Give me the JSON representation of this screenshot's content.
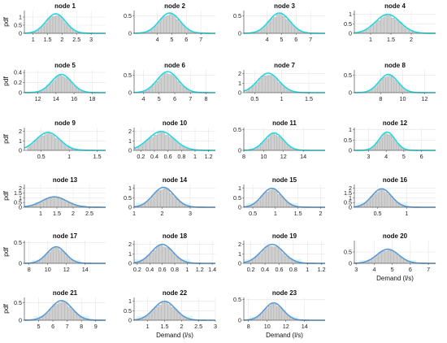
{
  "figure": {
    "ylabel": "pdf",
    "xlabel": "Demand (l/s)",
    "colors": {
      "light_curve": "#22d8e0",
      "dark_curve": "#5b9bd5",
      "hist_fill": "#cfcfcf",
      "hist_edge": "#9a9a9a",
      "band": "#d8f4f7",
      "grid": "#e6e6e6",
      "axis": "#333333"
    }
  },
  "chart_data": [
    {
      "type": "area",
      "title": "node 1",
      "xlim": [
        0.7,
        3.5
      ],
      "xticks": [
        1,
        1.5,
        2,
        2.5,
        3
      ],
      "ylim": [
        0,
        1.4
      ],
      "yticks": [
        0,
        0.5,
        1
      ],
      "peak": 1.2,
      "mu": 1.78,
      "sigma": 0.34,
      "series_style": "light",
      "ylabel": "pdf"
    },
    {
      "type": "area",
      "title": "node 2",
      "xlim": [
        2.4,
        8.0
      ],
      "xticks": [
        4,
        5,
        6,
        7
      ],
      "ylim": [
        0,
        0.65
      ],
      "yticks": [
        0,
        0.5
      ],
      "peak": 0.58,
      "mu": 4.85,
      "sigma": 0.72,
      "series_style": "light"
    },
    {
      "type": "area",
      "title": "node 3",
      "xlim": [
        2.4,
        8.0
      ],
      "xticks": [
        4,
        5,
        6,
        7
      ],
      "ylim": [
        0,
        0.65
      ],
      "yticks": [
        0,
        0.5
      ],
      "peak": 0.58,
      "mu": 4.85,
      "sigma": 0.72,
      "series_style": "light"
    },
    {
      "type": "area",
      "title": "node 4",
      "xlim": [
        0.6,
        2.6
      ],
      "xticks": [
        1,
        1.5,
        2
      ],
      "ylim": [
        0,
        1.2
      ],
      "yticks": [
        0,
        0.5,
        1
      ],
      "peak": 1.0,
      "mu": 1.42,
      "sigma": 0.3,
      "series_style": "light"
    },
    {
      "type": "area",
      "title": "node 5",
      "xlim": [
        10.5,
        19.5
      ],
      "xticks": [
        12,
        14,
        16,
        18
      ],
      "ylim": [
        0,
        0.45
      ],
      "yticks": [
        0,
        0.2,
        0.4
      ],
      "peak": 0.36,
      "mu": 14.6,
      "sigma": 1.1,
      "series_style": "light",
      "ylabel": "pdf"
    },
    {
      "type": "area",
      "title": "node 6",
      "xlim": [
        3.4,
        8.6
      ],
      "xticks": [
        4,
        5,
        6,
        7,
        8
      ],
      "ylim": [
        0,
        0.65
      ],
      "yticks": [
        0,
        0.5
      ],
      "peak": 0.6,
      "mu": 5.55,
      "sigma": 0.68,
      "series_style": "light"
    },
    {
      "type": "area",
      "title": "node 7",
      "xlim": [
        0.3,
        1.8
      ],
      "xticks": [
        0.5,
        1,
        1.5
      ],
      "ylim": [
        0,
        2.4
      ],
      "yticks": [
        0,
        1,
        2
      ],
      "peak": 2.05,
      "mu": 0.75,
      "sigma": 0.2,
      "series_style": "light"
    },
    {
      "type": "area",
      "title": "node 8",
      "xlim": [
        5.6,
        13.0
      ],
      "xticks": [
        8,
        10,
        12
      ],
      "ylim": [
        0,
        0.65
      ],
      "yticks": [
        0,
        0.5
      ],
      "peak": 0.52,
      "mu": 8.7,
      "sigma": 0.85,
      "series_style": "light"
    },
    {
      "type": "area",
      "title": "node 9",
      "xlim": [
        0.2,
        1.65
      ],
      "xticks": [
        0.5,
        1,
        1.5
      ],
      "ylim": [
        0,
        2.4
      ],
      "yticks": [
        0,
        1,
        2
      ],
      "peak": 1.9,
      "mu": 0.62,
      "sigma": 0.21,
      "series_style": "light",
      "ylabel": "pdf"
    },
    {
      "type": "area",
      "title": "node 10",
      "xlim": [
        0.1,
        1.3
      ],
      "xticks": [
        0.2,
        0.4,
        0.6,
        0.8,
        1,
        1.2
      ],
      "ylim": [
        0,
        2.4
      ],
      "yticks": [
        0,
        1,
        2
      ],
      "peak": 2.0,
      "mu": 0.5,
      "sigma": 0.19,
      "series_style": "light"
    },
    {
      "type": "area",
      "title": "node 11",
      "xlim": [
        8,
        16.2
      ],
      "xticks": [
        8,
        10,
        12,
        14
      ],
      "ylim": [
        0,
        0.55
      ],
      "yticks": [
        0,
        0.5
      ],
      "peak": 0.42,
      "mu": 11.05,
      "sigma": 0.95,
      "series_style": "light"
    },
    {
      "type": "area",
      "title": "node 12",
      "xlim": [
        2.2,
        6.8
      ],
      "xticks": [
        3,
        4,
        5,
        6
      ],
      "ylim": [
        0,
        1.1
      ],
      "yticks": [
        0,
        0.5,
        1
      ],
      "peak": 0.88,
      "mu": 4.05,
      "sigma": 0.45,
      "series_style": "light"
    },
    {
      "type": "area",
      "title": "node 13",
      "xlim": [
        0.5,
        3.0
      ],
      "xticks": [
        1,
        1.5,
        2,
        2.5
      ],
      "ylim": [
        0,
        2.4
      ],
      "yticks": [
        0,
        0.5,
        1,
        1.5,
        2
      ],
      "peak": 1.1,
      "mu": 1.42,
      "sigma": 0.38,
      "series_style": "dark",
      "ylabel": "pdf"
    },
    {
      "type": "area",
      "title": "node 14",
      "xlim": [
        1.0,
        3.9
      ],
      "xticks": [
        1,
        2,
        3
      ],
      "ylim": [
        0,
        1.2
      ],
      "yticks": [
        0,
        0.5,
        1
      ],
      "peak": 1.05,
      "mu": 2.05,
      "sigma": 0.38,
      "series_style": "dark"
    },
    {
      "type": "area",
      "title": "node 15",
      "xlim": [
        0.3,
        2.1
      ],
      "xticks": [
        0.5,
        1,
        1.5,
        2
      ],
      "ylim": [
        0,
        1.2
      ],
      "yticks": [
        0,
        0.5,
        1
      ],
      "peak": 1.0,
      "mu": 0.92,
      "sigma": 0.22,
      "series_style": "dark"
    },
    {
      "type": "area",
      "title": "node 16",
      "xlim": [
        0.1,
        1.5
      ],
      "xticks": [
        0.5,
        1
      ],
      "ylim": [
        0,
        2.4
      ],
      "yticks": [
        0,
        0.5,
        1,
        1.5,
        2
      ],
      "peak": 1.95,
      "mu": 0.57,
      "sigma": 0.17,
      "series_style": "dark"
    },
    {
      "type": "area",
      "title": "node 17",
      "xlim": [
        7.5,
        16.2
      ],
      "xticks": [
        8,
        10,
        12,
        14
      ],
      "ylim": [
        0,
        0.55
      ],
      "yticks": [
        0,
        0.5
      ],
      "peak": 0.4,
      "mu": 10.9,
      "sigma": 1.0,
      "series_style": "dark",
      "ylabel": "pdf"
    },
    {
      "type": "area",
      "title": "node 18",
      "xlim": [
        0.15,
        1.45
      ],
      "xticks": [
        0.2,
        0.4,
        0.6,
        0.8,
        1,
        1.2,
        1.4
      ],
      "ylim": [
        0,
        2.4
      ],
      "yticks": [
        0,
        1,
        2
      ],
      "peak": 2.0,
      "mu": 0.6,
      "sigma": 0.17,
      "series_style": "dark"
    },
    {
      "type": "area",
      "title": "node 19",
      "xlim": [
        0.1,
        1.25
      ],
      "xticks": [
        0.2,
        0.4,
        0.6,
        0.8,
        1,
        1.2
      ],
      "ylim": [
        0,
        2.4
      ],
      "yticks": [
        0,
        1,
        2
      ],
      "peak": 2.0,
      "mu": 0.5,
      "sigma": 0.16,
      "series_style": "dark"
    },
    {
      "type": "area",
      "title": "node 20",
      "xlim": [
        2.9,
        7.4
      ],
      "xticks": [
        3,
        4,
        5,
        6,
        7
      ],
      "ylim": [
        0,
        1.0
      ],
      "yticks": [
        0,
        0.5
      ],
      "peak": 0.62,
      "mu": 4.75,
      "sigma": 0.6,
      "series_style": "dark",
      "xlabel": "Demand (l/s)"
    },
    {
      "type": "area",
      "title": "node 21",
      "xlim": [
        4.0,
        9.7
      ],
      "xticks": [
        5,
        6,
        7,
        8,
        9
      ],
      "ylim": [
        0,
        0.65
      ],
      "yticks": [
        0,
        0.5
      ],
      "peak": 0.56,
      "mu": 6.6,
      "sigma": 0.75,
      "series_style": "dark",
      "ylabel": "pdf"
    },
    {
      "type": "area",
      "title": "node 22",
      "xlim": [
        0.6,
        3.0
      ],
      "xticks": [
        1,
        1.5,
        2,
        2.5,
        3
      ],
      "ylim": [
        0,
        1.2
      ],
      "yticks": [
        0,
        0.5,
        1
      ],
      "peak": 1.0,
      "mu": 1.5,
      "sigma": 0.32,
      "series_style": "dark",
      "xlabel": "Demand (l/s)"
    },
    {
      "type": "area",
      "title": "node 23",
      "xlim": [
        7.5,
        16.2
      ],
      "xticks": [
        8,
        10,
        12,
        14
      ],
      "ylim": [
        0,
        0.55
      ],
      "yticks": [
        0,
        0.5
      ],
      "peak": 0.42,
      "mu": 10.7,
      "sigma": 1.0,
      "series_style": "dark",
      "xlabel": "Demand (l/s)"
    }
  ]
}
